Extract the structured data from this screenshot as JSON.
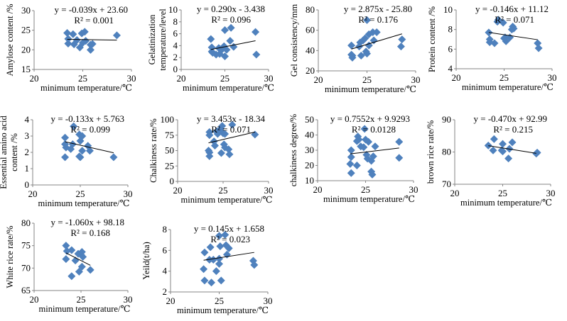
{
  "chart_data": [
    {
      "type": "scatter",
      "xlabel": "minimum temperature/℃",
      "ylabel": "Amylose content /%",
      "xlim": [
        20,
        30
      ],
      "ylim": [
        15,
        30
      ],
      "xticks": [
        20,
        25,
        30
      ],
      "yticks": [
        15,
        20,
        25,
        30
      ],
      "equation": "y = -0.039x + 23.60",
      "r2": "R² = 0.001",
      "trend": {
        "slope": -0.039,
        "intercept": 23.6,
        "x_range": [
          23.4,
          28.5
        ]
      },
      "points": [
        [
          23.4,
          24.3
        ],
        [
          23.5,
          22.8
        ],
        [
          23.5,
          21.6
        ],
        [
          24,
          24
        ],
        [
          24.1,
          21.4
        ],
        [
          24.4,
          22.5
        ],
        [
          24.7,
          20.6
        ],
        [
          24.9,
          24.2
        ],
        [
          25,
          21.8
        ],
        [
          25.2,
          24.6
        ],
        [
          25.3,
          22.3
        ],
        [
          25.8,
          21.3
        ],
        [
          25.8,
          20
        ],
        [
          26,
          21.5
        ],
        [
          28.5,
          23.7
        ]
      ]
    },
    {
      "type": "scatter",
      "xlabel": "minimum temperature/℃",
      "ylabel": "Gelatinization temperature/level",
      "xlim": [
        20,
        30
      ],
      "ylim": [
        0,
        10
      ],
      "xticks": [
        20,
        25,
        30
      ],
      "yticks": [
        0,
        2,
        4,
        6,
        8,
        10
      ],
      "equation": "y = 0.290x - 3.438",
      "r2": "R² = 0.096",
      "trend": {
        "slope": 0.29,
        "intercept": -3.438,
        "x_range": [
          23.4,
          28.5
        ]
      },
      "points": [
        [
          23.4,
          5.1
        ],
        [
          23.5,
          3.7
        ],
        [
          23.5,
          3
        ],
        [
          23.6,
          2.8
        ],
        [
          24,
          2.5
        ],
        [
          24.3,
          3.6
        ],
        [
          24.4,
          2.6
        ],
        [
          24.7,
          3.4
        ],
        [
          24.9,
          3.9
        ],
        [
          25,
          6.6
        ],
        [
          25,
          2.2
        ],
        [
          25.2,
          3.3
        ],
        [
          25.6,
          4.8
        ],
        [
          25.7,
          7
        ],
        [
          26,
          3.8
        ],
        [
          28.5,
          6.3
        ],
        [
          28.6,
          2.5
        ]
      ]
    },
    {
      "type": "scatter",
      "xlabel": "minimum temperature/℃",
      "ylabel": "Gel consistency/mm",
      "xlim": [
        20,
        30
      ],
      "ylim": [
        20,
        80
      ],
      "xticks": [
        20,
        25,
        30
      ],
      "yticks": [
        20,
        40,
        60,
        80
      ],
      "equation": "y = 2.875x - 25.80",
      "r2": "R² = 0.176",
      "trend": {
        "slope": 2.875,
        "intercept": -25.8,
        "x_range": [
          23.4,
          28.6
        ]
      },
      "points": [
        [
          23.4,
          45
        ],
        [
          23.4,
          36
        ],
        [
          23.5,
          33
        ],
        [
          23.5,
          35
        ],
        [
          24.2,
          44
        ],
        [
          24.3,
          48
        ],
        [
          24.4,
          35
        ],
        [
          24.6,
          50
        ],
        [
          24.8,
          52
        ],
        [
          24.9,
          39
        ],
        [
          25,
          37
        ],
        [
          25.2,
          56
        ],
        [
          25.2,
          45
        ],
        [
          25,
          70
        ],
        [
          25.6,
          58
        ],
        [
          25.7,
          50
        ],
        [
          26,
          58
        ],
        [
          28.5,
          44
        ],
        [
          28.6,
          51
        ]
      ]
    },
    {
      "type": "scatter",
      "xlabel": "minimum temperature/℃",
      "ylabel": "Protein content /%",
      "xlim": [
        20,
        30
      ],
      "ylim": [
        4,
        10
      ],
      "xticks": [
        20,
        25,
        30
      ],
      "yticks": [
        4,
        6,
        8,
        10
      ],
      "equation": "y = -0.146x + 11.12",
      "r2": "R² = 0.071",
      "trend": {
        "slope": -0.146,
        "intercept": 11.12,
        "x_range": [
          23.4,
          28.5
        ]
      },
      "points": [
        [
          23.4,
          7.7
        ],
        [
          23.5,
          7
        ],
        [
          23.5,
          6.7
        ],
        [
          24,
          6.6
        ],
        [
          24.3,
          8.8
        ],
        [
          24.4,
          9
        ],
        [
          24.9,
          8.7
        ],
        [
          25,
          7.1
        ],
        [
          25.2,
          6.8
        ],
        [
          25.1,
          7.2
        ],
        [
          25.6,
          7.2
        ],
        [
          25.8,
          8
        ],
        [
          25.9,
          8.3
        ],
        [
          26,
          8.1
        ],
        [
          28.5,
          6.6
        ],
        [
          28.6,
          6.1
        ]
      ]
    },
    {
      "type": "scatter",
      "xlabel": "minimum temperature/℃",
      "ylabel": "Essential amino acid content /%",
      "xlim": [
        20,
        30
      ],
      "ylim": [
        0,
        4
      ],
      "xticks": [
        20,
        25,
        30
      ],
      "yticks": [
        0,
        1,
        2,
        3,
        4
      ],
      "equation": "y = -0.133x + 5.763",
      "r2": "R² = 0.099",
      "trend": {
        "slope": -0.133,
        "intercept": 5.763,
        "x_range": [
          23.4,
          28.5
        ]
      },
      "points": [
        [
          23.4,
          2.9
        ],
        [
          23.4,
          2.5
        ],
        [
          23.5,
          2.3
        ],
        [
          23.4,
          1.7
        ],
        [
          24,
          2.2
        ],
        [
          24.2,
          2.5
        ],
        [
          24.3,
          3.6
        ],
        [
          24.9,
          3.1
        ],
        [
          25,
          2.7
        ],
        [
          25,
          1.7
        ],
        [
          24.9,
          1.75
        ],
        [
          25.2,
          3
        ],
        [
          25.2,
          2.1
        ],
        [
          25.8,
          2.4
        ],
        [
          26,
          2.1
        ],
        [
          28.5,
          1.7
        ]
      ]
    },
    {
      "type": "scatter",
      "xlabel": "minimum temperature/℃",
      "ylabel": "Chalkiness rate/%",
      "xlim": [
        20,
        30
      ],
      "ylim": [
        0,
        100
      ],
      "xticks": [
        20,
        25,
        30
      ],
      "yticks": [
        0,
        25,
        50,
        75,
        100
      ],
      "equation": "y = 3.453x - 18.34",
      "r2": "R² = 0.071",
      "trend": {
        "slope": 3.453,
        "intercept": -18.34,
        "x_range": [
          23.4,
          28.5
        ]
      },
      "points": [
        [
          23.5,
          80
        ],
        [
          23.5,
          75
        ],
        [
          23.4,
          50
        ],
        [
          23.5,
          47
        ],
        [
          23.5,
          41
        ],
        [
          24,
          65
        ],
        [
          24.1,
          58
        ],
        [
          24.3,
          81
        ],
        [
          24.4,
          77
        ],
        [
          24.7,
          85
        ],
        [
          24.8,
          46
        ],
        [
          24.9,
          90
        ],
        [
          25,
          78
        ],
        [
          25.1,
          60
        ],
        [
          25.2,
          77
        ],
        [
          25.2,
          55
        ],
        [
          25.6,
          52
        ],
        [
          25.7,
          44
        ],
        [
          26,
          92
        ],
        [
          28.5,
          76
        ]
      ]
    },
    {
      "type": "scatter",
      "xlabel": "minimum temperature/℃",
      "ylabel": "chalkiness degree/%",
      "xlim": [
        20,
        30
      ],
      "ylim": [
        10,
        50
      ],
      "xticks": [
        20,
        25,
        30
      ],
      "yticks": [
        10,
        20,
        30,
        40,
        50
      ],
      "equation": "y = 0.7552x + 9.9293",
      "r2": "R² = 0.0128",
      "trend": {
        "slope": 0.7552,
        "intercept": 9.9293,
        "x_range": [
          23.4,
          28.5
        ]
      },
      "points": [
        [
          23.4,
          21
        ],
        [
          23.5,
          30
        ],
        [
          23.5,
          25.5
        ],
        [
          23.5,
          15
        ],
        [
          24.1,
          20
        ],
        [
          24.1,
          36
        ],
        [
          24.2,
          39
        ],
        [
          24.3,
          37
        ],
        [
          24.5,
          32.5
        ],
        [
          24.8,
          32
        ],
        [
          24.9,
          44
        ],
        [
          25,
          37
        ],
        [
          25.1,
          27
        ],
        [
          25.2,
          24.5
        ],
        [
          25.3,
          35.5
        ],
        [
          25.6,
          23
        ],
        [
          25.6,
          16
        ],
        [
          25.7,
          14
        ],
        [
          25.8,
          26
        ],
        [
          26,
          32.5
        ],
        [
          28.5,
          35.5
        ],
        [
          28.5,
          25
        ]
      ]
    },
    {
      "type": "scatter",
      "xlabel": "minimum temperature/℃",
      "ylabel": "brown rice rate/%",
      "xlim": [
        20,
        30
      ],
      "ylim": [
        70,
        90
      ],
      "xticks": [
        20,
        25,
        30
      ],
      "yticks": [
        70,
        80,
        90
      ],
      "equation": "y = -0.470x + 92.99",
      "r2": "R² = 0.215",
      "trend": {
        "slope": -0.47,
        "intercept": 92.99,
        "x_range": [
          23.5,
          28.5
        ]
      },
      "points": [
        [
          23.5,
          82
        ],
        [
          24,
          80.5
        ],
        [
          24.1,
          84
        ],
        [
          24.9,
          80.5
        ],
        [
          25,
          80.2
        ],
        [
          25,
          82.5
        ],
        [
          25.6,
          78
        ],
        [
          25.7,
          81
        ],
        [
          26,
          83
        ],
        [
          28.5,
          79.5
        ],
        [
          28.6,
          79.8
        ]
      ]
    },
    {
      "type": "scatter",
      "xlabel": "minimum temperature/℃",
      "ylabel": "White rice rate/%",
      "xlim": [
        20,
        30
      ],
      "ylim": [
        65,
        80
      ],
      "xticks": [
        20,
        25,
        30
      ],
      "yticks": [
        65,
        70,
        75,
        80
      ],
      "equation": "y = -1.060x + 98.18",
      "r2": "R² = 0.168",
      "trend": {
        "slope": -1.06,
        "intercept": 98.18,
        "x_range": [
          23.4,
          26
        ]
      },
      "points": [
        [
          23.4,
          75
        ],
        [
          23.4,
          72
        ],
        [
          23.5,
          73.8
        ],
        [
          24,
          74
        ],
        [
          24,
          68.2
        ],
        [
          24.4,
          71.7
        ],
        [
          24.7,
          73.2
        ],
        [
          24.8,
          69.2
        ],
        [
          25,
          73
        ],
        [
          25.1,
          73.6
        ],
        [
          25.2,
          72.5
        ],
        [
          25.1,
          70.3
        ],
        [
          26,
          69.6
        ]
      ]
    },
    {
      "type": "scatter",
      "xlabel": "minimum temperature/℃",
      "ylabel": "Yeild(t/ha)",
      "xlim": [
        20,
        30
      ],
      "ylim": [
        2,
        8
      ],
      "xticks": [
        20,
        25,
        30
      ],
      "yticks": [
        2,
        4,
        6,
        8
      ],
      "equation": "y = 0.145x + 1.658",
      "r2": "R² = 0.023",
      "trend": {
        "slope": 0.145,
        "intercept": 1.658,
        "x_range": [
          23.4,
          28.6
        ]
      },
      "points": [
        [
          23.4,
          4.2
        ],
        [
          23.5,
          5.8
        ],
        [
          23.5,
          3.1
        ],
        [
          24,
          5.1
        ],
        [
          24.1,
          6.3
        ],
        [
          24.2,
          2.9
        ],
        [
          24.4,
          5.1
        ],
        [
          24.7,
          4
        ],
        [
          25,
          7.4
        ],
        [
          25,
          5.2
        ],
        [
          25,
          4.7
        ],
        [
          25.1,
          6.4
        ],
        [
          25.2,
          3.1
        ],
        [
          25.6,
          7.5
        ],
        [
          25.7,
          6.5
        ],
        [
          25.8,
          5.6
        ],
        [
          26,
          6.2
        ],
        [
          28.5,
          5
        ],
        [
          28.6,
          4.6
        ]
      ]
    }
  ],
  "colors": {
    "marker": "#4F81BD",
    "trendline": "#000000",
    "axis": "#868686"
  }
}
